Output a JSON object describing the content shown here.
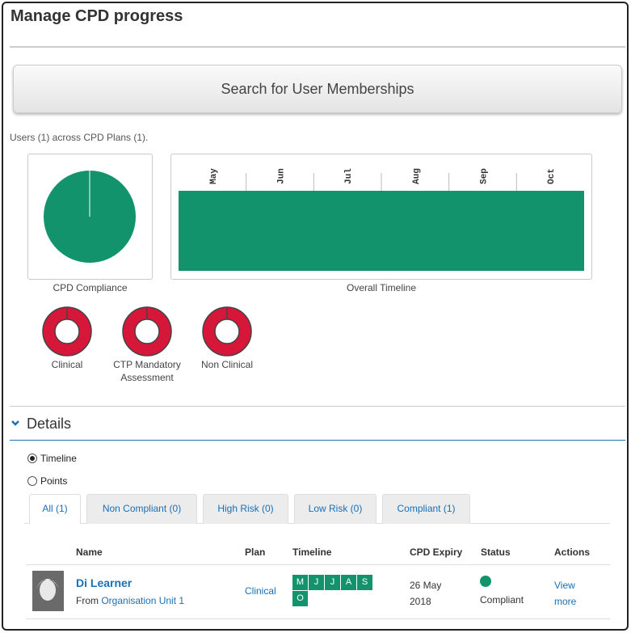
{
  "header": {
    "title": "Manage CPD progress"
  },
  "search_button": {
    "label": "Search for User Memberships"
  },
  "summary": "Users (1) across CPD Plans (1).",
  "overview": {
    "compliance_label": "CPD Compliance",
    "timeline_label": "Overall Timeline",
    "months": [
      "May",
      "Jun",
      "Jul",
      "Aug",
      "Sep",
      "Oct"
    ]
  },
  "plans": [
    {
      "label": "Clinical"
    },
    {
      "label": "CTP Mandatory Assessment"
    },
    {
      "label": "Non Clinical"
    }
  ],
  "details": {
    "heading": "Details",
    "view_options": [
      {
        "label": "Timeline",
        "selected": true
      },
      {
        "label": "Points",
        "selected": false
      }
    ],
    "tabs": [
      {
        "label": "All (1)",
        "active": true
      },
      {
        "label": "Non Compliant (0)",
        "active": false
      },
      {
        "label": "High Risk (0)",
        "active": false
      },
      {
        "label": "Low Risk (0)",
        "active": false
      },
      {
        "label": "Compliant (1)",
        "active": false
      }
    ],
    "table": {
      "columns": [
        "Name",
        "Plan",
        "Timeline",
        "CPD Expiry",
        "Status",
        "Actions"
      ],
      "rows": [
        {
          "name": "Di Learner",
          "from": "From",
          "unit": "Organisation Unit 1",
          "plan": "Clinical",
          "timeline": [
            "M",
            "J",
            "J",
            "A",
            "S",
            "O"
          ],
          "expiry": "26 May 2018",
          "status": "Compliant",
          "action": "View more"
        }
      ]
    }
  }
}
